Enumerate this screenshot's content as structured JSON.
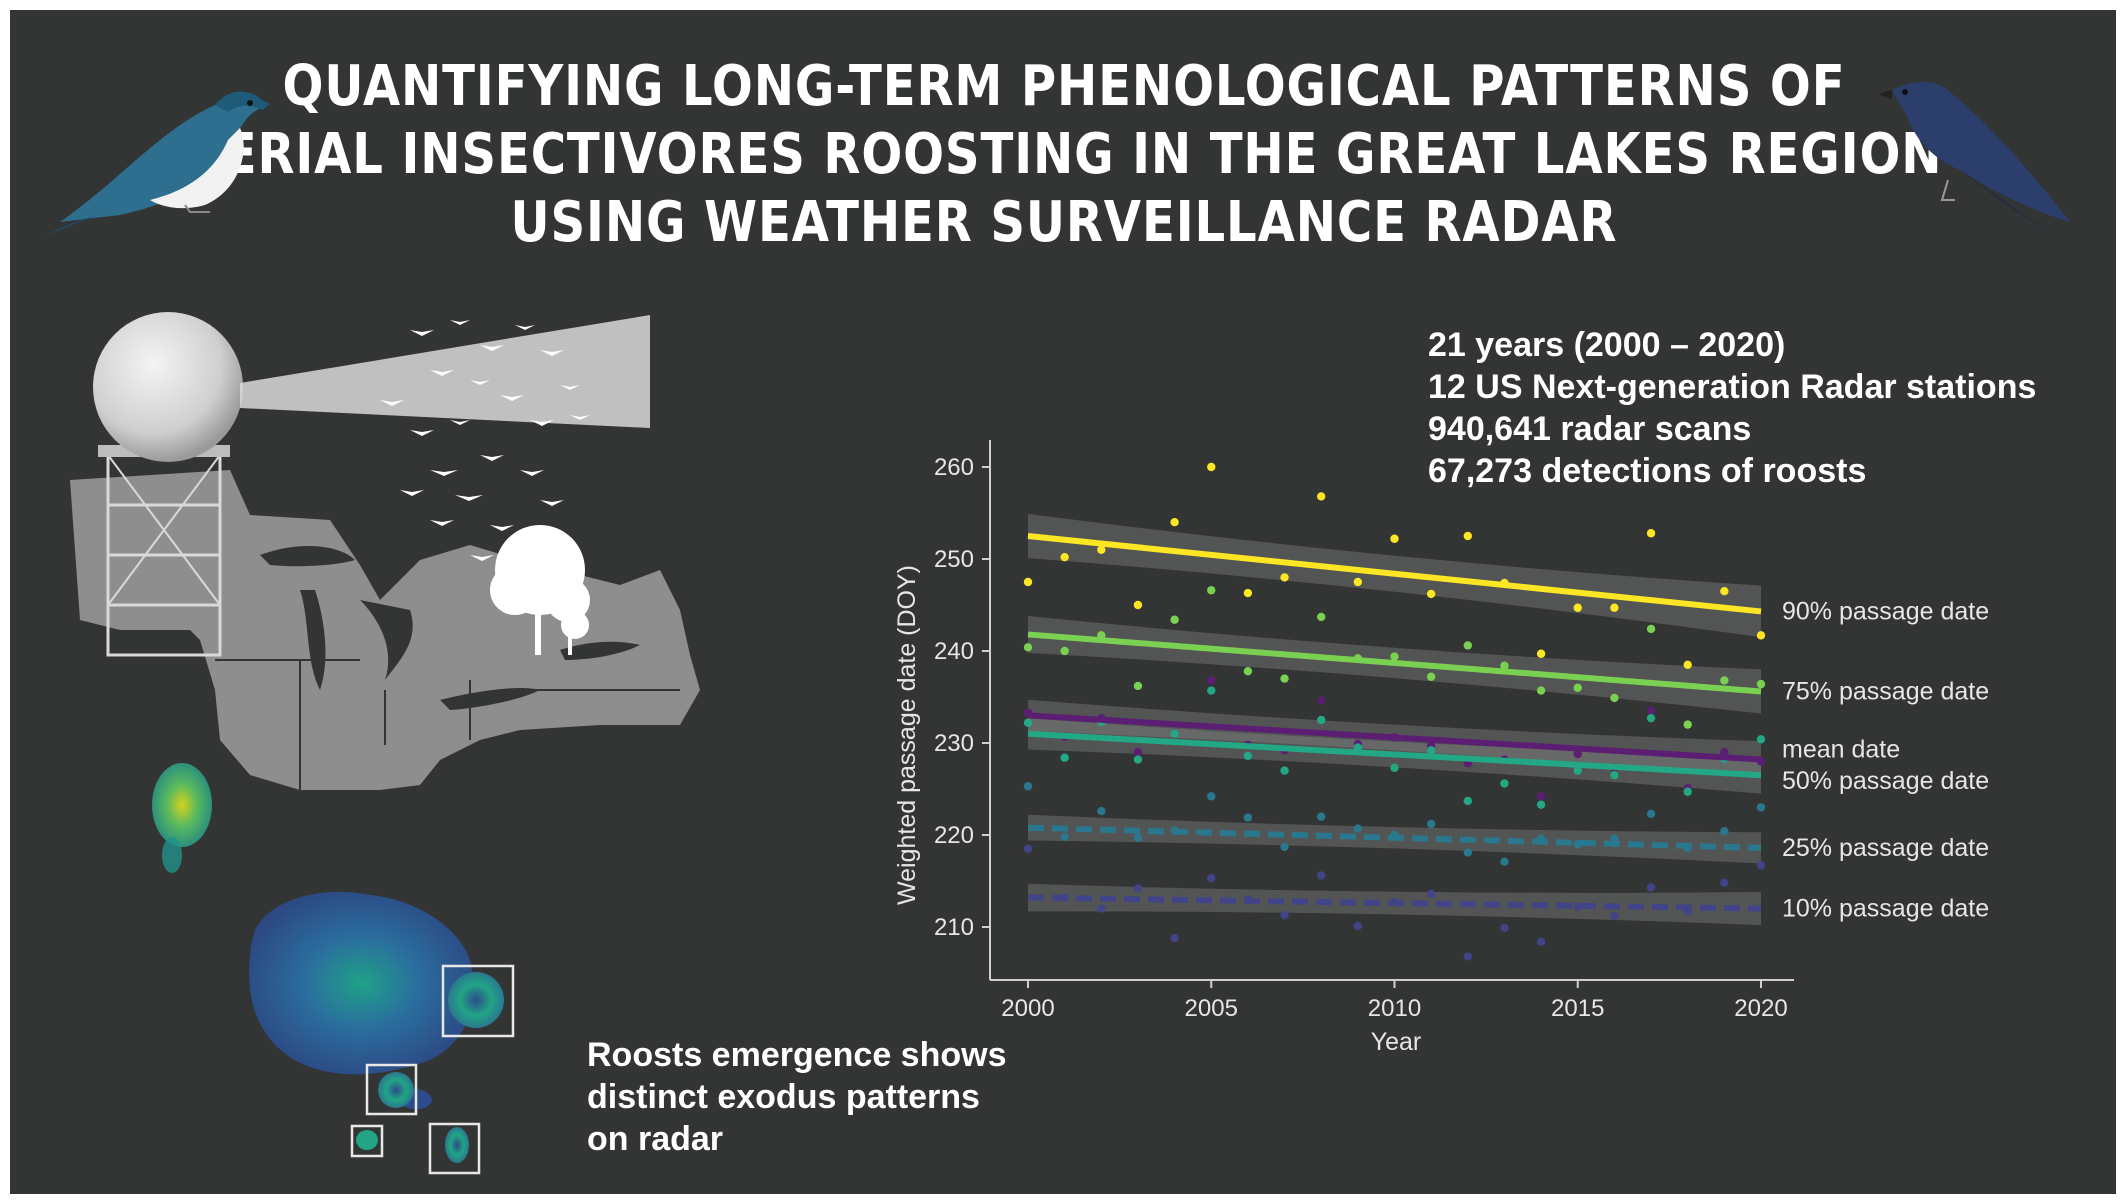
{
  "header": {
    "title_lines": [
      "QUANTIFYING LONG-TERM PHENOLOGICAL PATTERNS OF",
      "AERIAL INSECTIVORES ROOSTING IN THE GREAT LAKES REGION",
      "USING WEATHER SURVEILLANCE RADAR"
    ]
  },
  "stats": [
    "21 years (2000 – 2020)",
    "12 US Next-generation Radar stations",
    "940,641 radar scans",
    "67,273 detections of roosts"
  ],
  "caption": [
    "Roosts emergence shows",
    "distinct exodus patterns",
    "on radar"
  ],
  "colors": {
    "background": "#333434",
    "p90": "#fde725",
    "p75": "#7ad151",
    "mean": "#5b1e73",
    "p50": "#22a884",
    "p25": "#2a788e",
    "p10": "#414487",
    "band": "#8a8a8a"
  },
  "chart_data": {
    "type": "line",
    "title": "",
    "xlabel": "Year",
    "ylabel": "Weighted passage date (DOY)",
    "xlim": [
      2000,
      2020
    ],
    "ylim": [
      205,
      262
    ],
    "x_ticks": [
      2000,
      2005,
      2010,
      2015,
      2020
    ],
    "y_ticks": [
      210,
      220,
      230,
      240,
      250,
      260
    ],
    "x": [
      2000,
      2001,
      2002,
      2003,
      2004,
      2005,
      2006,
      2007,
      2008,
      2009,
      2010,
      2011,
      2012,
      2013,
      2014,
      2015,
      2016,
      2017,
      2018,
      2019,
      2020
    ],
    "series": [
      {
        "name": "90% passage date",
        "color": "#fde725",
        "dashed": false,
        "trend": [
          252.5,
          244.3
        ],
        "ci": [
          2.4,
          2.8
        ],
        "points": [
          247.5,
          250.2,
          251.0,
          245.0,
          254.0,
          260.0,
          246.3,
          248.0,
          256.8,
          247.5,
          252.2,
          246.2,
          252.5,
          247.4,
          239.7,
          244.7,
          244.7,
          252.8,
          238.5,
          246.5,
          241.7
        ]
      },
      {
        "name": "75% passage date",
        "color": "#7ad151",
        "dashed": false,
        "trend": [
          241.8,
          235.6
        ],
        "ci": [
          2.0,
          2.4
        ],
        "points": [
          240.4,
          240.0,
          241.7,
          236.2,
          243.4,
          246.6,
          237.8,
          237.0,
          243.7,
          239.2,
          239.4,
          237.2,
          240.6,
          238.4,
          235.7,
          236.0,
          234.9,
          242.4,
          232.0,
          236.8,
          236.4
        ]
      },
      {
        "name": "mean date",
        "color": "#5b1e73",
        "dashed": false,
        "trend": [
          233.0,
          228.2
        ],
        "ci": [
          1.7,
          2.0
        ],
        "points": [
          233.3,
          230.7,
          232.7,
          229.0,
          231.0,
          236.8,
          229.8,
          229.2,
          234.6,
          229.9,
          230.6,
          229.7,
          227.8,
          228.2,
          224.2,
          228.8,
          227.3,
          233.5,
          225.1,
          229.0,
          228.0
        ]
      },
      {
        "name": "50% passage date",
        "color": "#22a884",
        "dashed": false,
        "trend": [
          231.0,
          226.5
        ],
        "ci": [
          1.7,
          2.0
        ],
        "points": [
          232.2,
          228.4,
          232.3,
          228.2,
          231.0,
          235.7,
          228.6,
          227.0,
          232.5,
          229.5,
          227.3,
          229.2,
          223.7,
          225.6,
          223.3,
          227.0,
          226.5,
          232.7,
          224.7,
          228.3,
          230.4
        ]
      },
      {
        "name": "25% passage date",
        "color": "#2a788e",
        "dashed": true,
        "trend": [
          220.8,
          218.6
        ],
        "ci": [
          1.4,
          1.7
        ],
        "points": [
          225.3,
          219.8,
          222.6,
          219.7,
          220.5,
          224.2,
          221.9,
          218.7,
          222.0,
          220.7,
          220.0,
          221.2,
          218.1,
          217.1,
          219.6,
          219.0,
          219.6,
          222.3,
          218.6,
          220.4,
          223.0
        ]
      },
      {
        "name": "10% passage date",
        "color": "#414487",
        "dashed": true,
        "trend": [
          213.2,
          212.0
        ],
        "ci": [
          1.5,
          1.8
        ],
        "points": [
          218.5,
          213.2,
          212.0,
          214.2,
          208.8,
          215.3,
          213.0,
          211.3,
          215.6,
          210.1,
          212.7,
          213.6,
          206.8,
          209.9,
          208.4,
          212.2,
          211.2,
          214.3,
          211.7,
          214.8,
          216.7
        ]
      }
    ]
  }
}
